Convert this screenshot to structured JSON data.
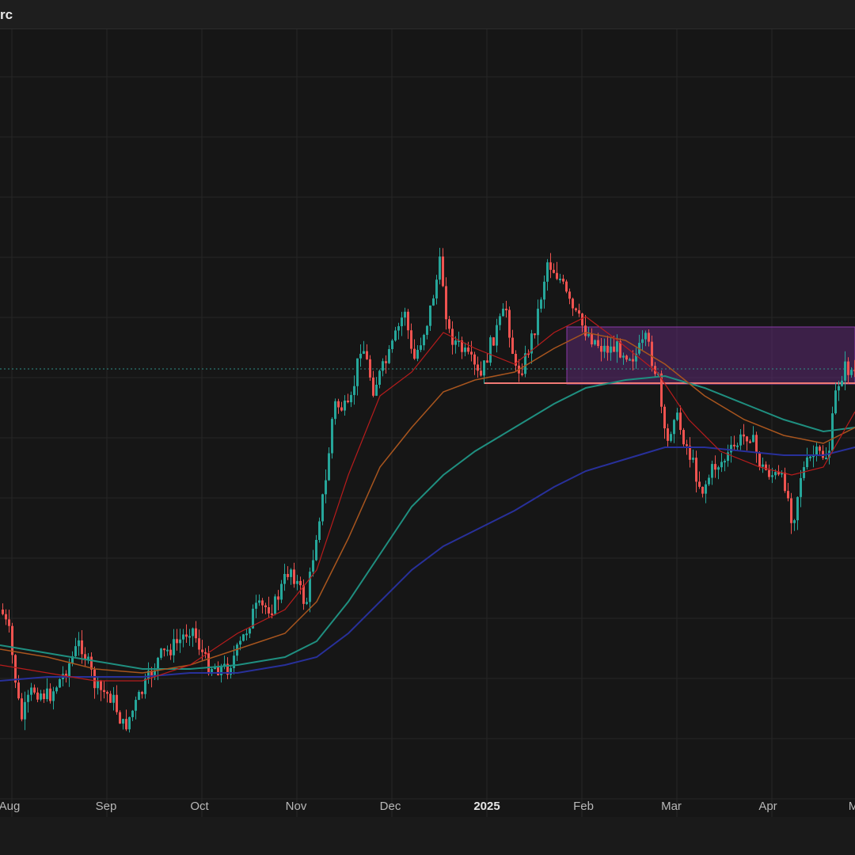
{
  "header": {
    "symbol": "rc"
  },
  "colors": {
    "bg": "#161616",
    "grid": "#262626",
    "up": "#26a69a",
    "down": "#ef5350",
    "ma_fast": "#b71c1c",
    "ma_mid": "#a8551e",
    "ma_slow": "#1f8f80",
    "ma_long": "#28309a",
    "zone": "#6a2c86",
    "support_line": "#f07a74",
    "price_line": "#2e8f88"
  },
  "chart_data": {
    "type": "candlestick",
    "x_tick_labels": [
      "Aug",
      "Sep",
      "Oct",
      "Nov",
      "Dec",
      "2025",
      "Feb",
      "Mar",
      "Apr",
      "M"
    ],
    "x_tick_bold": [
      false,
      false,
      false,
      false,
      false,
      true,
      false,
      false,
      false,
      false
    ],
    "indicators": [
      "moving-average-fast",
      "moving-average-mid",
      "moving-average-slow",
      "moving-average-long"
    ],
    "grid": true,
    "legend": "none",
    "price_path": [
      [
        0,
        770
      ],
      [
        10,
        800
      ],
      [
        25,
        910
      ],
      [
        40,
        870
      ],
      [
        60,
        880
      ],
      [
        80,
        850
      ],
      [
        100,
        810
      ],
      [
        120,
        870
      ],
      [
        140,
        880
      ],
      [
        155,
        920
      ],
      [
        175,
        880
      ],
      [
        200,
        830
      ],
      [
        225,
        810
      ],
      [
        240,
        790
      ],
      [
        260,
        840
      ],
      [
        285,
        845
      ],
      [
        300,
        820
      ],
      [
        320,
        770
      ],
      [
        345,
        765
      ],
      [
        365,
        715
      ],
      [
        385,
        765
      ],
      [
        400,
        660
      ],
      [
        410,
        610
      ],
      [
        420,
        510
      ],
      [
        440,
        520
      ],
      [
        455,
        430
      ],
      [
        470,
        490
      ],
      [
        490,
        450
      ],
      [
        510,
        390
      ],
      [
        520,
        460
      ],
      [
        540,
        400
      ],
      [
        555,
        330
      ],
      [
        565,
        420
      ],
      [
        580,
        440
      ],
      [
        595,
        460
      ],
      [
        605,
        480
      ],
      [
        620,
        430
      ],
      [
        638,
        390
      ],
      [
        650,
        470
      ],
      [
        660,
        460
      ],
      [
        675,
        410
      ],
      [
        690,
        330
      ],
      [
        705,
        350
      ],
      [
        720,
        390
      ],
      [
        740,
        420
      ],
      [
        760,
        440
      ],
      [
        780,
        440
      ],
      [
        800,
        450
      ],
      [
        815,
        430
      ],
      [
        830,
        480
      ],
      [
        840,
        570
      ],
      [
        850,
        520
      ],
      [
        865,
        560
      ],
      [
        885,
        620
      ],
      [
        900,
        590
      ],
      [
        915,
        580
      ],
      [
        930,
        560
      ],
      [
        945,
        545
      ],
      [
        960,
        590
      ],
      [
        975,
        600
      ],
      [
        990,
        610
      ],
      [
        1000,
        660
      ],
      [
        1010,
        600
      ],
      [
        1025,
        575
      ],
      [
        1045,
        575
      ],
      [
        1055,
        490
      ],
      [
        1065,
        465
      ],
      [
        1080,
        470
      ]
    ],
    "ma_fast": [
      [
        0,
        840
      ],
      [
        60,
        850
      ],
      [
        120,
        860
      ],
      [
        180,
        860
      ],
      [
        240,
        840
      ],
      [
        300,
        800
      ],
      [
        360,
        770
      ],
      [
        400,
        720
      ],
      [
        440,
        600
      ],
      [
        480,
        500
      ],
      [
        520,
        470
      ],
      [
        560,
        420
      ],
      [
        600,
        440
      ],
      [
        650,
        460
      ],
      [
        700,
        420
      ],
      [
        740,
        400
      ],
      [
        780,
        430
      ],
      [
        830,
        470
      ],
      [
        870,
        530
      ],
      [
        910,
        570
      ],
      [
        960,
        590
      ],
      [
        1000,
        600
      ],
      [
        1040,
        590
      ],
      [
        1080,
        520
      ]
    ],
    "ma_mid": [
      [
        0,
        820
      ],
      [
        60,
        830
      ],
      [
        120,
        845
      ],
      [
        180,
        850
      ],
      [
        240,
        840
      ],
      [
        300,
        820
      ],
      [
        360,
        800
      ],
      [
        400,
        760
      ],
      [
        440,
        680
      ],
      [
        480,
        590
      ],
      [
        520,
        540
      ],
      [
        560,
        495
      ],
      [
        600,
        480
      ],
      [
        650,
        470
      ],
      [
        700,
        440
      ],
      [
        740,
        420
      ],
      [
        790,
        430
      ],
      [
        840,
        460
      ],
      [
        890,
        500
      ],
      [
        940,
        530
      ],
      [
        990,
        550
      ],
      [
        1040,
        560
      ],
      [
        1080,
        540
      ]
    ],
    "ma_slow": [
      [
        0,
        815
      ],
      [
        60,
        825
      ],
      [
        120,
        835
      ],
      [
        180,
        845
      ],
      [
        240,
        845
      ],
      [
        300,
        840
      ],
      [
        360,
        830
      ],
      [
        400,
        810
      ],
      [
        440,
        760
      ],
      [
        480,
        700
      ],
      [
        520,
        640
      ],
      [
        560,
        600
      ],
      [
        600,
        570
      ],
      [
        650,
        540
      ],
      [
        700,
        510
      ],
      [
        740,
        490
      ],
      [
        790,
        480
      ],
      [
        840,
        475
      ],
      [
        890,
        490
      ],
      [
        940,
        510
      ],
      [
        990,
        530
      ],
      [
        1040,
        545
      ],
      [
        1080,
        540
      ]
    ],
    "ma_long": [
      [
        0,
        860
      ],
      [
        60,
        855
      ],
      [
        120,
        855
      ],
      [
        180,
        855
      ],
      [
        240,
        850
      ],
      [
        300,
        850
      ],
      [
        360,
        840
      ],
      [
        400,
        830
      ],
      [
        440,
        800
      ],
      [
        480,
        760
      ],
      [
        520,
        720
      ],
      [
        560,
        690
      ],
      [
        600,
        670
      ],
      [
        650,
        645
      ],
      [
        700,
        615
      ],
      [
        740,
        595
      ],
      [
        790,
        580
      ],
      [
        840,
        565
      ],
      [
        890,
        565
      ],
      [
        940,
        570
      ],
      [
        990,
        575
      ],
      [
        1040,
        575
      ],
      [
        1080,
        565
      ]
    ]
  }
}
